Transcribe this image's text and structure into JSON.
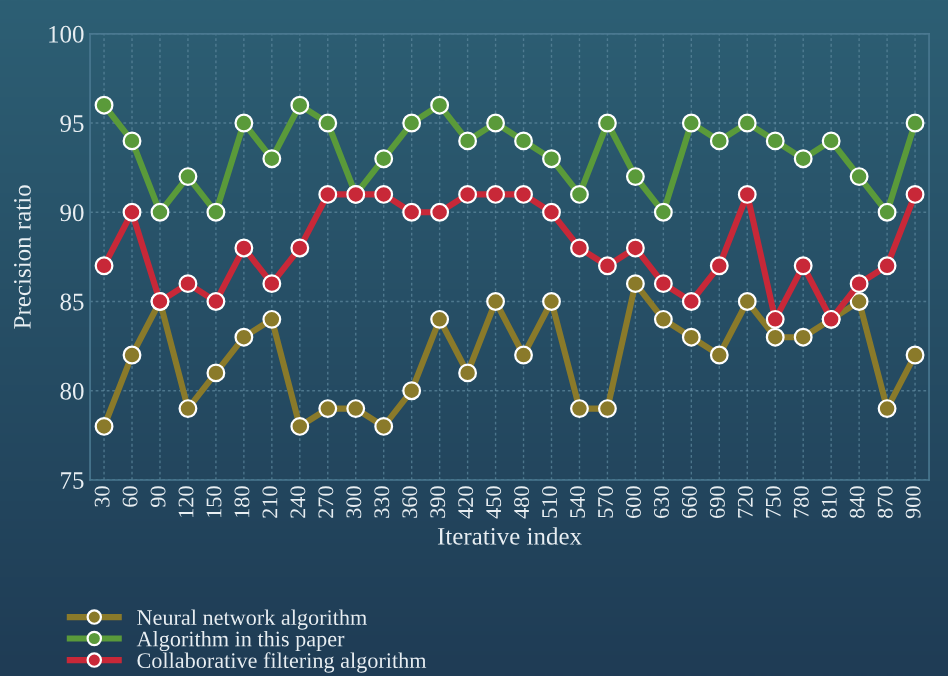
{
  "chart_data": {
    "type": "line",
    "xlabel": "Iterative index",
    "ylabel": "Precision ratio",
    "categories": [
      "30",
      "60",
      "90",
      "120",
      "150",
      "180",
      "210",
      "240",
      "270",
      "300",
      "330",
      "360",
      "390",
      "420",
      "450",
      "480",
      "510",
      "540",
      "570",
      "600",
      "630",
      "660",
      "690",
      "720",
      "750",
      "780",
      "810",
      "840",
      "870",
      "900"
    ],
    "series": [
      {
        "name": "Neural network algorithm",
        "color": "#8a7a2a",
        "values": [
          78,
          82,
          85,
          79,
          81,
          83,
          84,
          78,
          79,
          79,
          78,
          80,
          84,
          81,
          85,
          82,
          85,
          79,
          79,
          86,
          84,
          83,
          82,
          85,
          83,
          83,
          84,
          85,
          79,
          82
        ]
      },
      {
        "name": "Algorithm in this paper",
        "color": "#5a9a3a",
        "values": [
          96,
          94,
          90,
          92,
          90,
          95,
          93,
          96,
          95,
          91,
          93,
          95,
          96,
          94,
          95,
          94,
          93,
          91,
          95,
          92,
          90,
          95,
          94,
          95,
          94,
          93,
          94,
          92,
          90,
          95
        ]
      },
      {
        "name": "Collaborative filtering algorithm",
        "color": "#c82838",
        "values": [
          87,
          90,
          85,
          86,
          85,
          88,
          86,
          88,
          91,
          91,
          91,
          90,
          90,
          91,
          91,
          91,
          90,
          88,
          87,
          88,
          86,
          85,
          87,
          91,
          84,
          87,
          84,
          86,
          87,
          91
        ]
      }
    ],
    "ylim": [
      75,
      100
    ],
    "yticks": [
      75,
      80,
      85,
      90,
      95,
      100
    ],
    "grid": true,
    "legend": "bottom left",
    "marker": "circle",
    "line_style": "solid"
  }
}
